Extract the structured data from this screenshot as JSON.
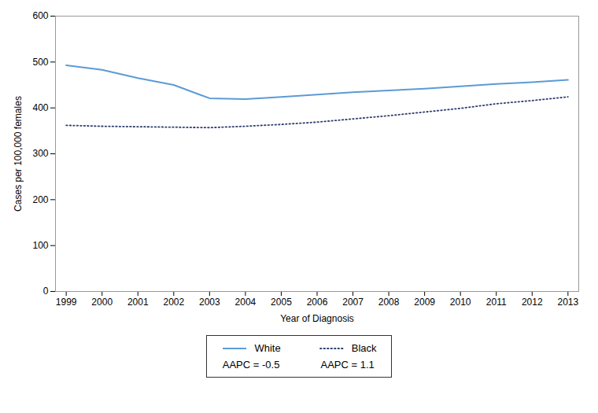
{
  "chart_data": {
    "type": "line",
    "x": [
      1999,
      2000,
      2001,
      2002,
      2003,
      2004,
      2005,
      2006,
      2007,
      2008,
      2009,
      2010,
      2011,
      2012,
      2013
    ],
    "series": [
      {
        "name": "White",
        "color": "#5B9BD5",
        "line_style": "solid",
        "values": [
          493,
          483,
          465,
          450,
          421,
          419,
          424,
          429,
          434,
          438,
          442,
          447,
          452,
          456,
          461
        ]
      },
      {
        "name": "Black",
        "color": "#2E3E6E",
        "line_style": "dotted",
        "values": [
          362,
          360,
          359,
          358,
          357,
          360,
          364,
          369,
          376,
          383,
          391,
          399,
          409,
          416,
          424
        ]
      }
    ],
    "annotations": [
      "AAPC = -0.5",
      "AAPC = 1.1"
    ],
    "xlabel": "Year of Diagnosis",
    "ylabel": "Cases per 100,000 females",
    "xlim": [
      1998.7,
      2013.3
    ],
    "xticks": [
      1999,
      2000,
      2001,
      2002,
      2003,
      2004,
      2005,
      2006,
      2007,
      2008,
      2009,
      2010,
      2011,
      2012,
      2013
    ],
    "ylim": [
      0,
      600
    ],
    "yticks": [
      0,
      100,
      200,
      300,
      400,
      500,
      600
    ],
    "grid": false,
    "legend": "bottom"
  }
}
